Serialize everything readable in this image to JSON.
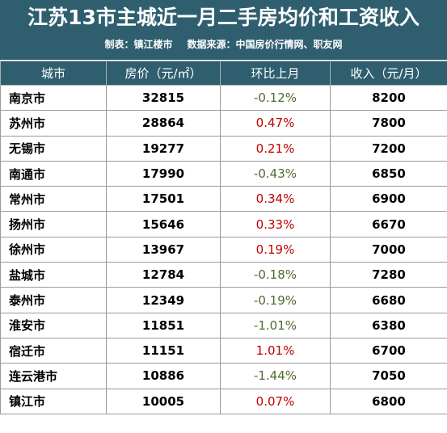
{
  "title": "江苏13市主城近一月二手房均价和工资收入",
  "subtitle": {
    "maker": "制表：镇江楼市",
    "source": "数据来源：中国房价行情网、职友网"
  },
  "columns": [
    "城市",
    "房价（元/㎡）",
    "环比上月",
    "收入（元/月）"
  ],
  "colors": {
    "header_bg": "#2f5f6f",
    "positive": "#c00000",
    "negative": "#4e6b2a"
  },
  "rows": [
    {
      "city": "南京市",
      "price": "32815",
      "change": "-0.12%",
      "income": "8200"
    },
    {
      "city": "苏州市",
      "price": "28864",
      "change": "0.47%",
      "income": "7800"
    },
    {
      "city": "无锡市",
      "price": "19277",
      "change": "0.21%",
      "income": "7200"
    },
    {
      "city": "南通市",
      "price": "17990",
      "change": "-0.43%",
      "income": "6850"
    },
    {
      "city": "常州市",
      "price": "17501",
      "change": "0.34%",
      "income": "6900"
    },
    {
      "city": "扬州市",
      "price": "15646",
      "change": "0.33%",
      "income": "6670"
    },
    {
      "city": "徐州市",
      "price": "13967",
      "change": "0.19%",
      "income": "7000"
    },
    {
      "city": "盐城市",
      "price": "12784",
      "change": "-0.18%",
      "income": "7280"
    },
    {
      "city": "泰州市",
      "price": "12349",
      "change": "-0.19%",
      "income": "6680"
    },
    {
      "city": "淮安市",
      "price": "11851",
      "change": "-1.01%",
      "income": "6380"
    },
    {
      "city": "宿迁市",
      "price": "11151",
      "change": "1.01%",
      "income": "6700"
    },
    {
      "city": "连云港市",
      "price": "10886",
      "change": "-1.44%",
      "income": "7050"
    },
    {
      "city": "镇江市",
      "price": "10005",
      "change": "0.07%",
      "income": "6800"
    }
  ]
}
